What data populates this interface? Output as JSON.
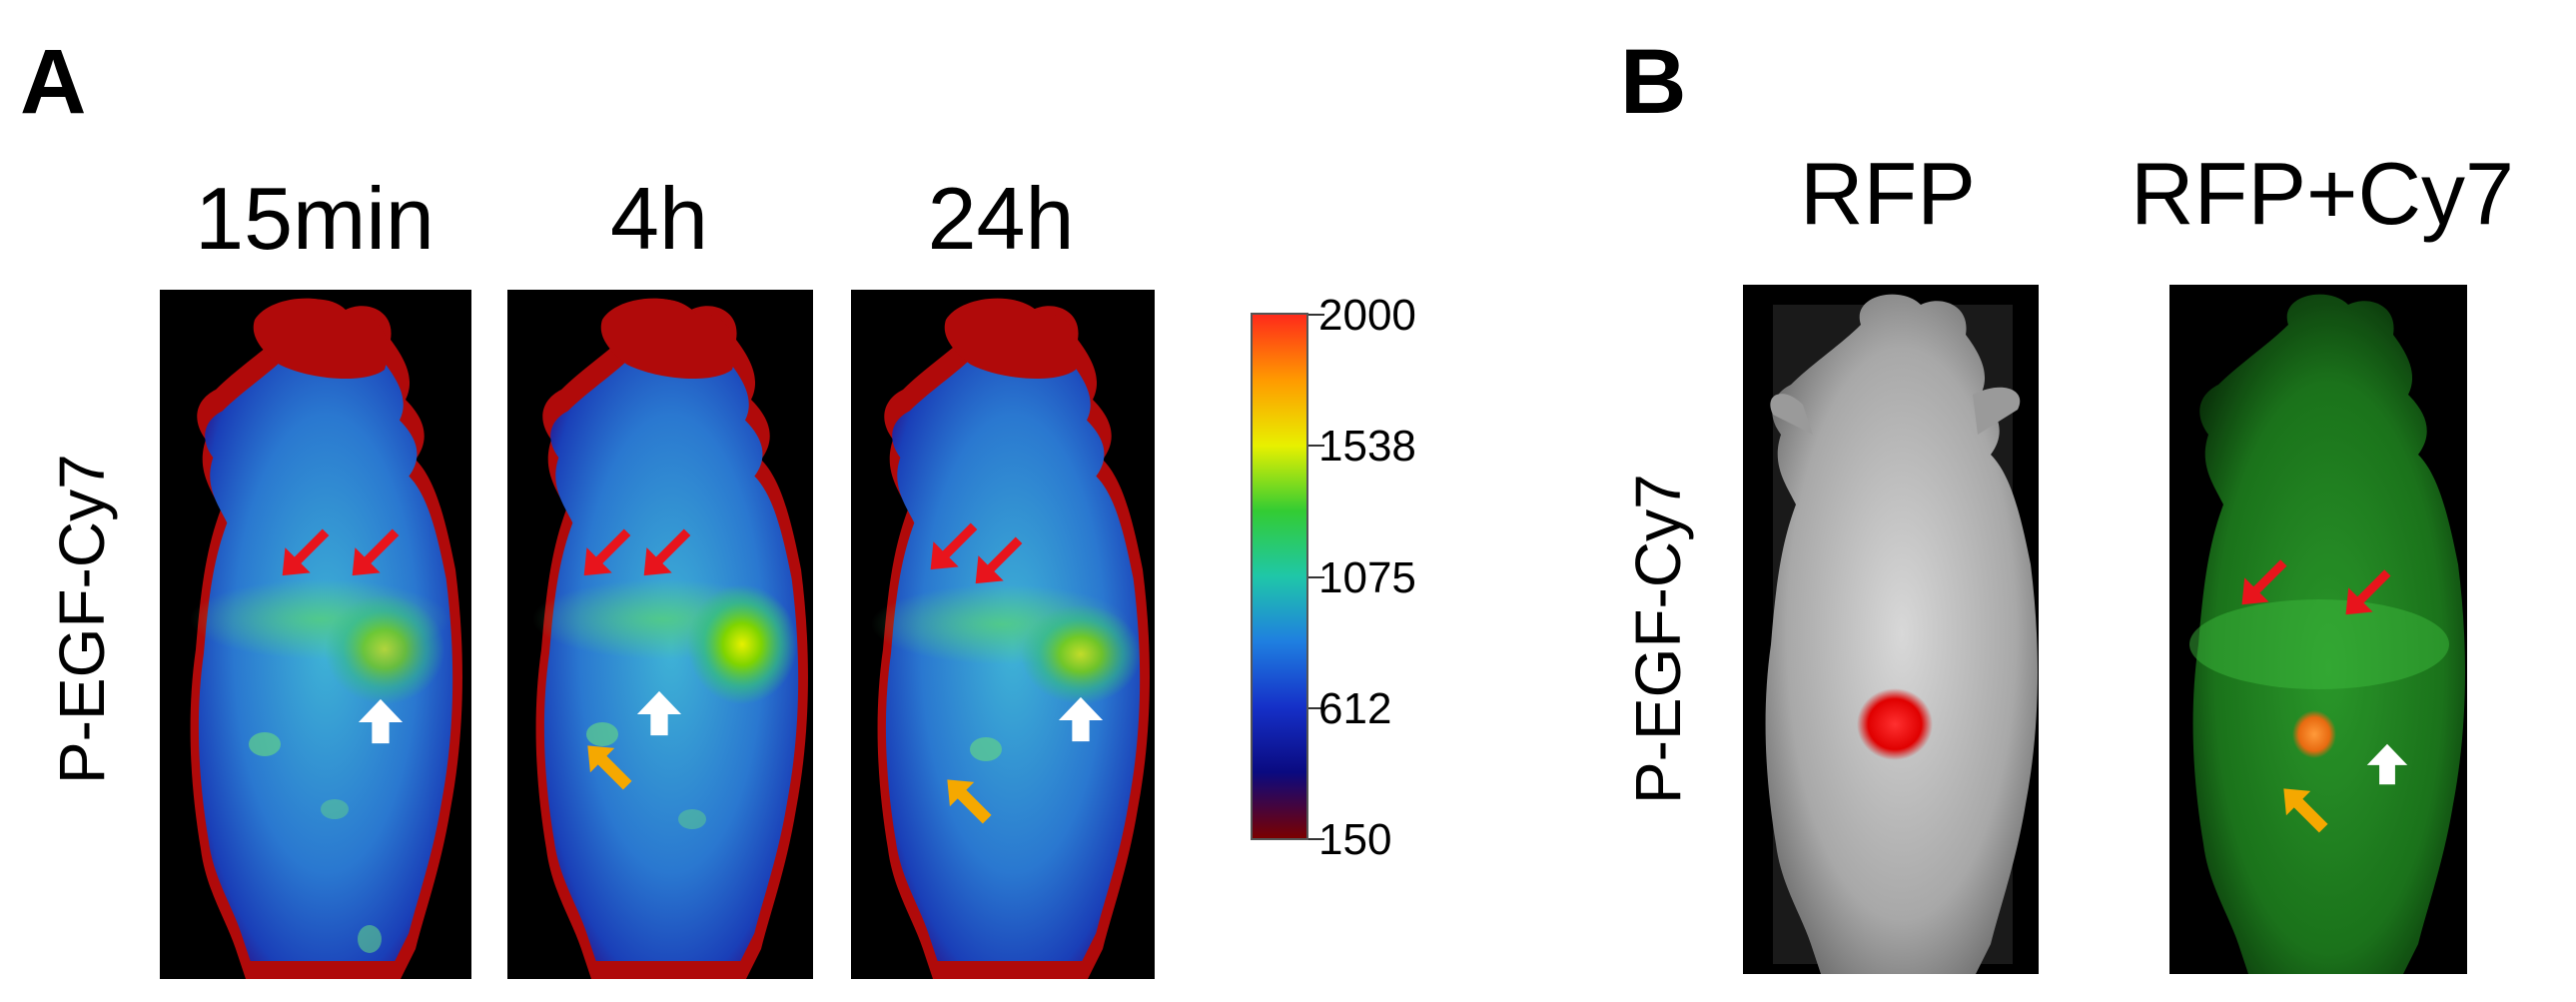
{
  "panels": {
    "A": {
      "letter": "A",
      "row_label": "P-EGF-Cy7",
      "time_points": [
        "15min",
        "4h",
        "24h"
      ],
      "colorbar": {
        "ticks": [
          "2000",
          "1538",
          "1075",
          "612",
          "150"
        ],
        "colors": [
          "#ff2a1a",
          "#ff9a00",
          "#e8f000",
          "#33cc33",
          "#1fc7a8",
          "#1f7fe0",
          "#1530c8",
          "#0a0a80",
          "#7a0000"
        ]
      }
    },
    "B": {
      "letter": "B",
      "row_label": "P-EGF-Cy7",
      "channels": [
        "RFP",
        "RFP+Cy7"
      ]
    }
  },
  "arrows": {
    "red": "#e8141c",
    "white": "#ffffff",
    "orange": "#f5a800"
  }
}
